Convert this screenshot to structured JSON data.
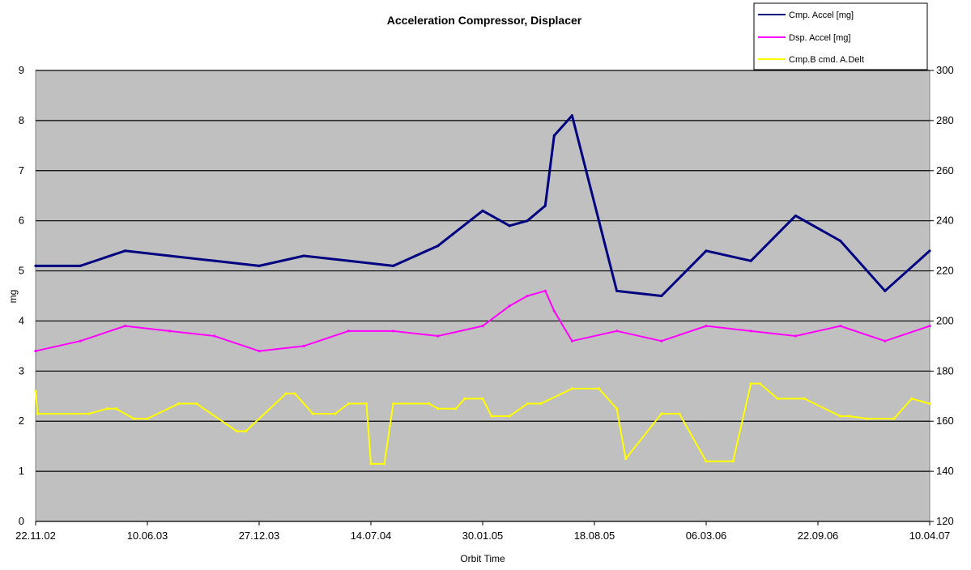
{
  "chart_data": {
    "type": "line",
    "title": "Acceleration Compressor, Displacer",
    "xlabel": "Orbit Time",
    "ylabel": "mg",
    "ylim": [
      0,
      9
    ],
    "y2lim": [
      120,
      300
    ],
    "y_ticks": [
      "0",
      "1",
      "2",
      "3",
      "4",
      "5",
      "6",
      "7",
      "8",
      "9"
    ],
    "y2_ticks": [
      "120",
      "140",
      "160",
      "180",
      "200",
      "220",
      "240",
      "260",
      "280",
      "300"
    ],
    "x_ticks": [
      "22.11.02",
      "10.06.03",
      "27.12.03",
      "14.07.04",
      "30.01.05",
      "18.08.05",
      "06.03.06",
      "22.09.06",
      "10.04.07"
    ],
    "grid": true,
    "legend_position": "top-right",
    "colors": {
      "plot_bg": "#c0c0c0",
      "cmp": "#000080",
      "dsp": "#ff00ff",
      "cmd": "#ffff00",
      "grid": "#000000"
    },
    "series": [
      {
        "name": "Cmp. Accel [mg]",
        "axis": "left",
        "x_frac": [
          0.0,
          0.05,
          0.1,
          0.15,
          0.2,
          0.25,
          0.3,
          0.35,
          0.4,
          0.45,
          0.5,
          0.53,
          0.55,
          0.57,
          0.58,
          0.6,
          0.65,
          0.7,
          0.75,
          0.8,
          0.85,
          0.9,
          0.95,
          1.0
        ],
        "values": [
          5.1,
          5.1,
          5.4,
          5.3,
          5.2,
          5.1,
          5.3,
          5.2,
          5.1,
          5.5,
          6.2,
          5.9,
          6.0,
          6.3,
          7.7,
          8.1,
          4.6,
          4.5,
          5.4,
          5.2,
          6.1,
          5.6,
          4.6,
          5.4
        ]
      },
      {
        "name": "Dsp. Accel [mg]",
        "axis": "left",
        "x_frac": [
          0.0,
          0.05,
          0.1,
          0.15,
          0.2,
          0.25,
          0.3,
          0.35,
          0.4,
          0.45,
          0.5,
          0.53,
          0.55,
          0.57,
          0.58,
          0.6,
          0.65,
          0.7,
          0.75,
          0.8,
          0.85,
          0.9,
          0.95,
          1.0
        ],
        "values": [
          3.4,
          3.6,
          3.9,
          3.8,
          3.7,
          3.4,
          3.5,
          3.8,
          3.8,
          3.7,
          3.9,
          4.3,
          4.5,
          4.6,
          4.2,
          3.6,
          3.8,
          3.6,
          3.9,
          3.8,
          3.7,
          3.9,
          3.6,
          3.9
        ]
      },
      {
        "name": "Cmp.B cmd. A.Delt",
        "axis": "right",
        "x_frac": [
          0.0,
          0.002,
          0.06,
          0.08,
          0.09,
          0.11,
          0.125,
          0.16,
          0.18,
          0.225,
          0.235,
          0.28,
          0.29,
          0.31,
          0.335,
          0.35,
          0.37,
          0.375,
          0.39,
          0.4,
          0.44,
          0.45,
          0.47,
          0.48,
          0.5,
          0.51,
          0.53,
          0.55,
          0.565,
          0.6,
          0.63,
          0.65,
          0.66,
          0.7,
          0.72,
          0.75,
          0.78,
          0.8,
          0.81,
          0.83,
          0.86,
          0.9,
          0.91,
          0.93,
          0.96,
          0.98,
          1.0
        ],
        "values": [
          172,
          163,
          163,
          165,
          165,
          161,
          161,
          167,
          167,
          156,
          156,
          171,
          171,
          163,
          163,
          167,
          167,
          143,
          143,
          167,
          167,
          165,
          165,
          169,
          169,
          162,
          162,
          167,
          167,
          173,
          173,
          165,
          145,
          163,
          163,
          144,
          144,
          175,
          175,
          169,
          169,
          162,
          162,
          161,
          161,
          169,
          167
        ]
      }
    ]
  }
}
